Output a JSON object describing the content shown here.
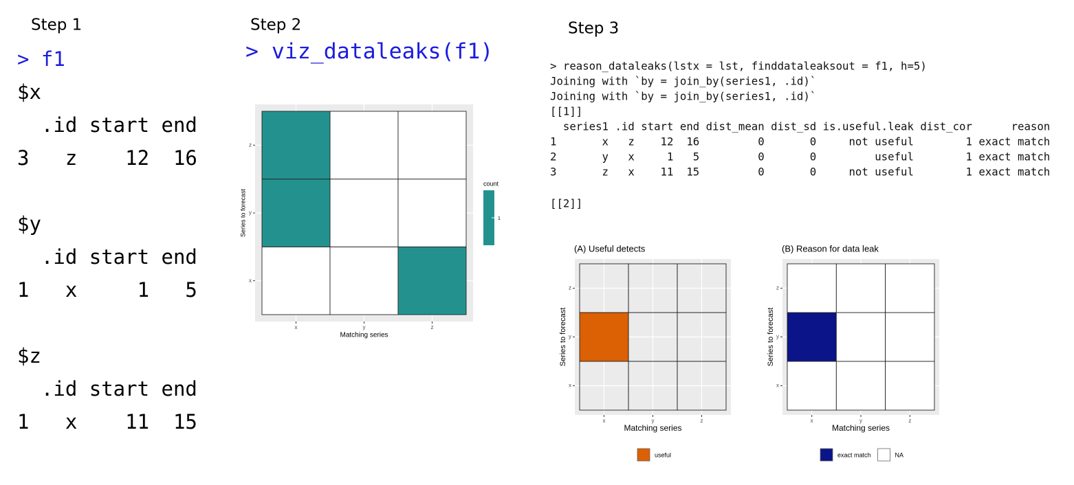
{
  "step1": {
    "label": "Step 1",
    "command": "> f1",
    "groups": [
      {
        "name": "$x",
        "header": "  .id start end",
        "row": "3   z    12  16"
      },
      {
        "name": "$y",
        "header": "  .id start end",
        "row": "1   x     1   5"
      },
      {
        "name": "$z",
        "header": "  .id start end",
        "row": "1   x    11  15"
      }
    ]
  },
  "step2": {
    "label": "Step 2",
    "command": "> viz_dataleaks(f1)"
  },
  "step3": {
    "label": "Step 3",
    "command": "> reason_dataleaks(lstx = lst, finddataleaksout = f1, h=5)",
    "output": [
      "Joining with `by = join_by(series1, .id)`",
      "Joining with `by = join_by(series1, .id)`",
      "[[1]]",
      "  series1 .id start end dist_mean dist_sd is.useful.leak dist_cor      reason",
      "1       x   z    12  16         0       0     not useful        1 exact match",
      "2       y   x     1   5         0       0         useful        1 exact match",
      "3       z   x    11  15         0       0     not useful        1 exact match"
    ],
    "next": "[[2]]"
  },
  "chart_data": [
    {
      "type": "heatmap",
      "x": [
        "x",
        "y",
        "z"
      ],
      "y": [
        "x",
        "y",
        "z"
      ],
      "x_label": "Matching series",
      "y_label": "Series to forecast",
      "values": [
        [
          null,
          null,
          1
        ],
        [
          1,
          null,
          null
        ],
        [
          1,
          null,
          null
        ]
      ],
      "color": "#23928f",
      "legend_title": "count",
      "legend_ticks": [
        1
      ],
      "grid": true
    },
    {
      "type": "heatmap",
      "title": "(A) Useful detects",
      "x": [
        "x",
        "y",
        "z"
      ],
      "y": [
        "x",
        "y",
        "z"
      ],
      "x_label": "Matching series",
      "y_label": "Series to forecast",
      "values": [
        [
          null,
          null,
          null
        ],
        [
          "useful",
          null,
          null
        ],
        [
          null,
          null,
          null
        ]
      ],
      "legend": [
        {
          "name": "useful",
          "color": "#dc6004"
        }
      ],
      "grid": true
    },
    {
      "type": "heatmap",
      "title": "(B) Reason for data leak",
      "x": [
        "x",
        "y",
        "z"
      ],
      "y": [
        "x",
        "y",
        "z"
      ],
      "x_label": "Matching series",
      "y_label": "Series to forecast",
      "values": [
        [
          "NA",
          "NA",
          "NA"
        ],
        [
          "exact match",
          "NA",
          "NA"
        ],
        [
          "NA",
          "NA",
          "NA"
        ]
      ],
      "legend": [
        {
          "name": "exact match",
          "color": "#0c1489"
        },
        {
          "name": "NA",
          "color": "#ffffff"
        }
      ],
      "grid": true
    }
  ]
}
